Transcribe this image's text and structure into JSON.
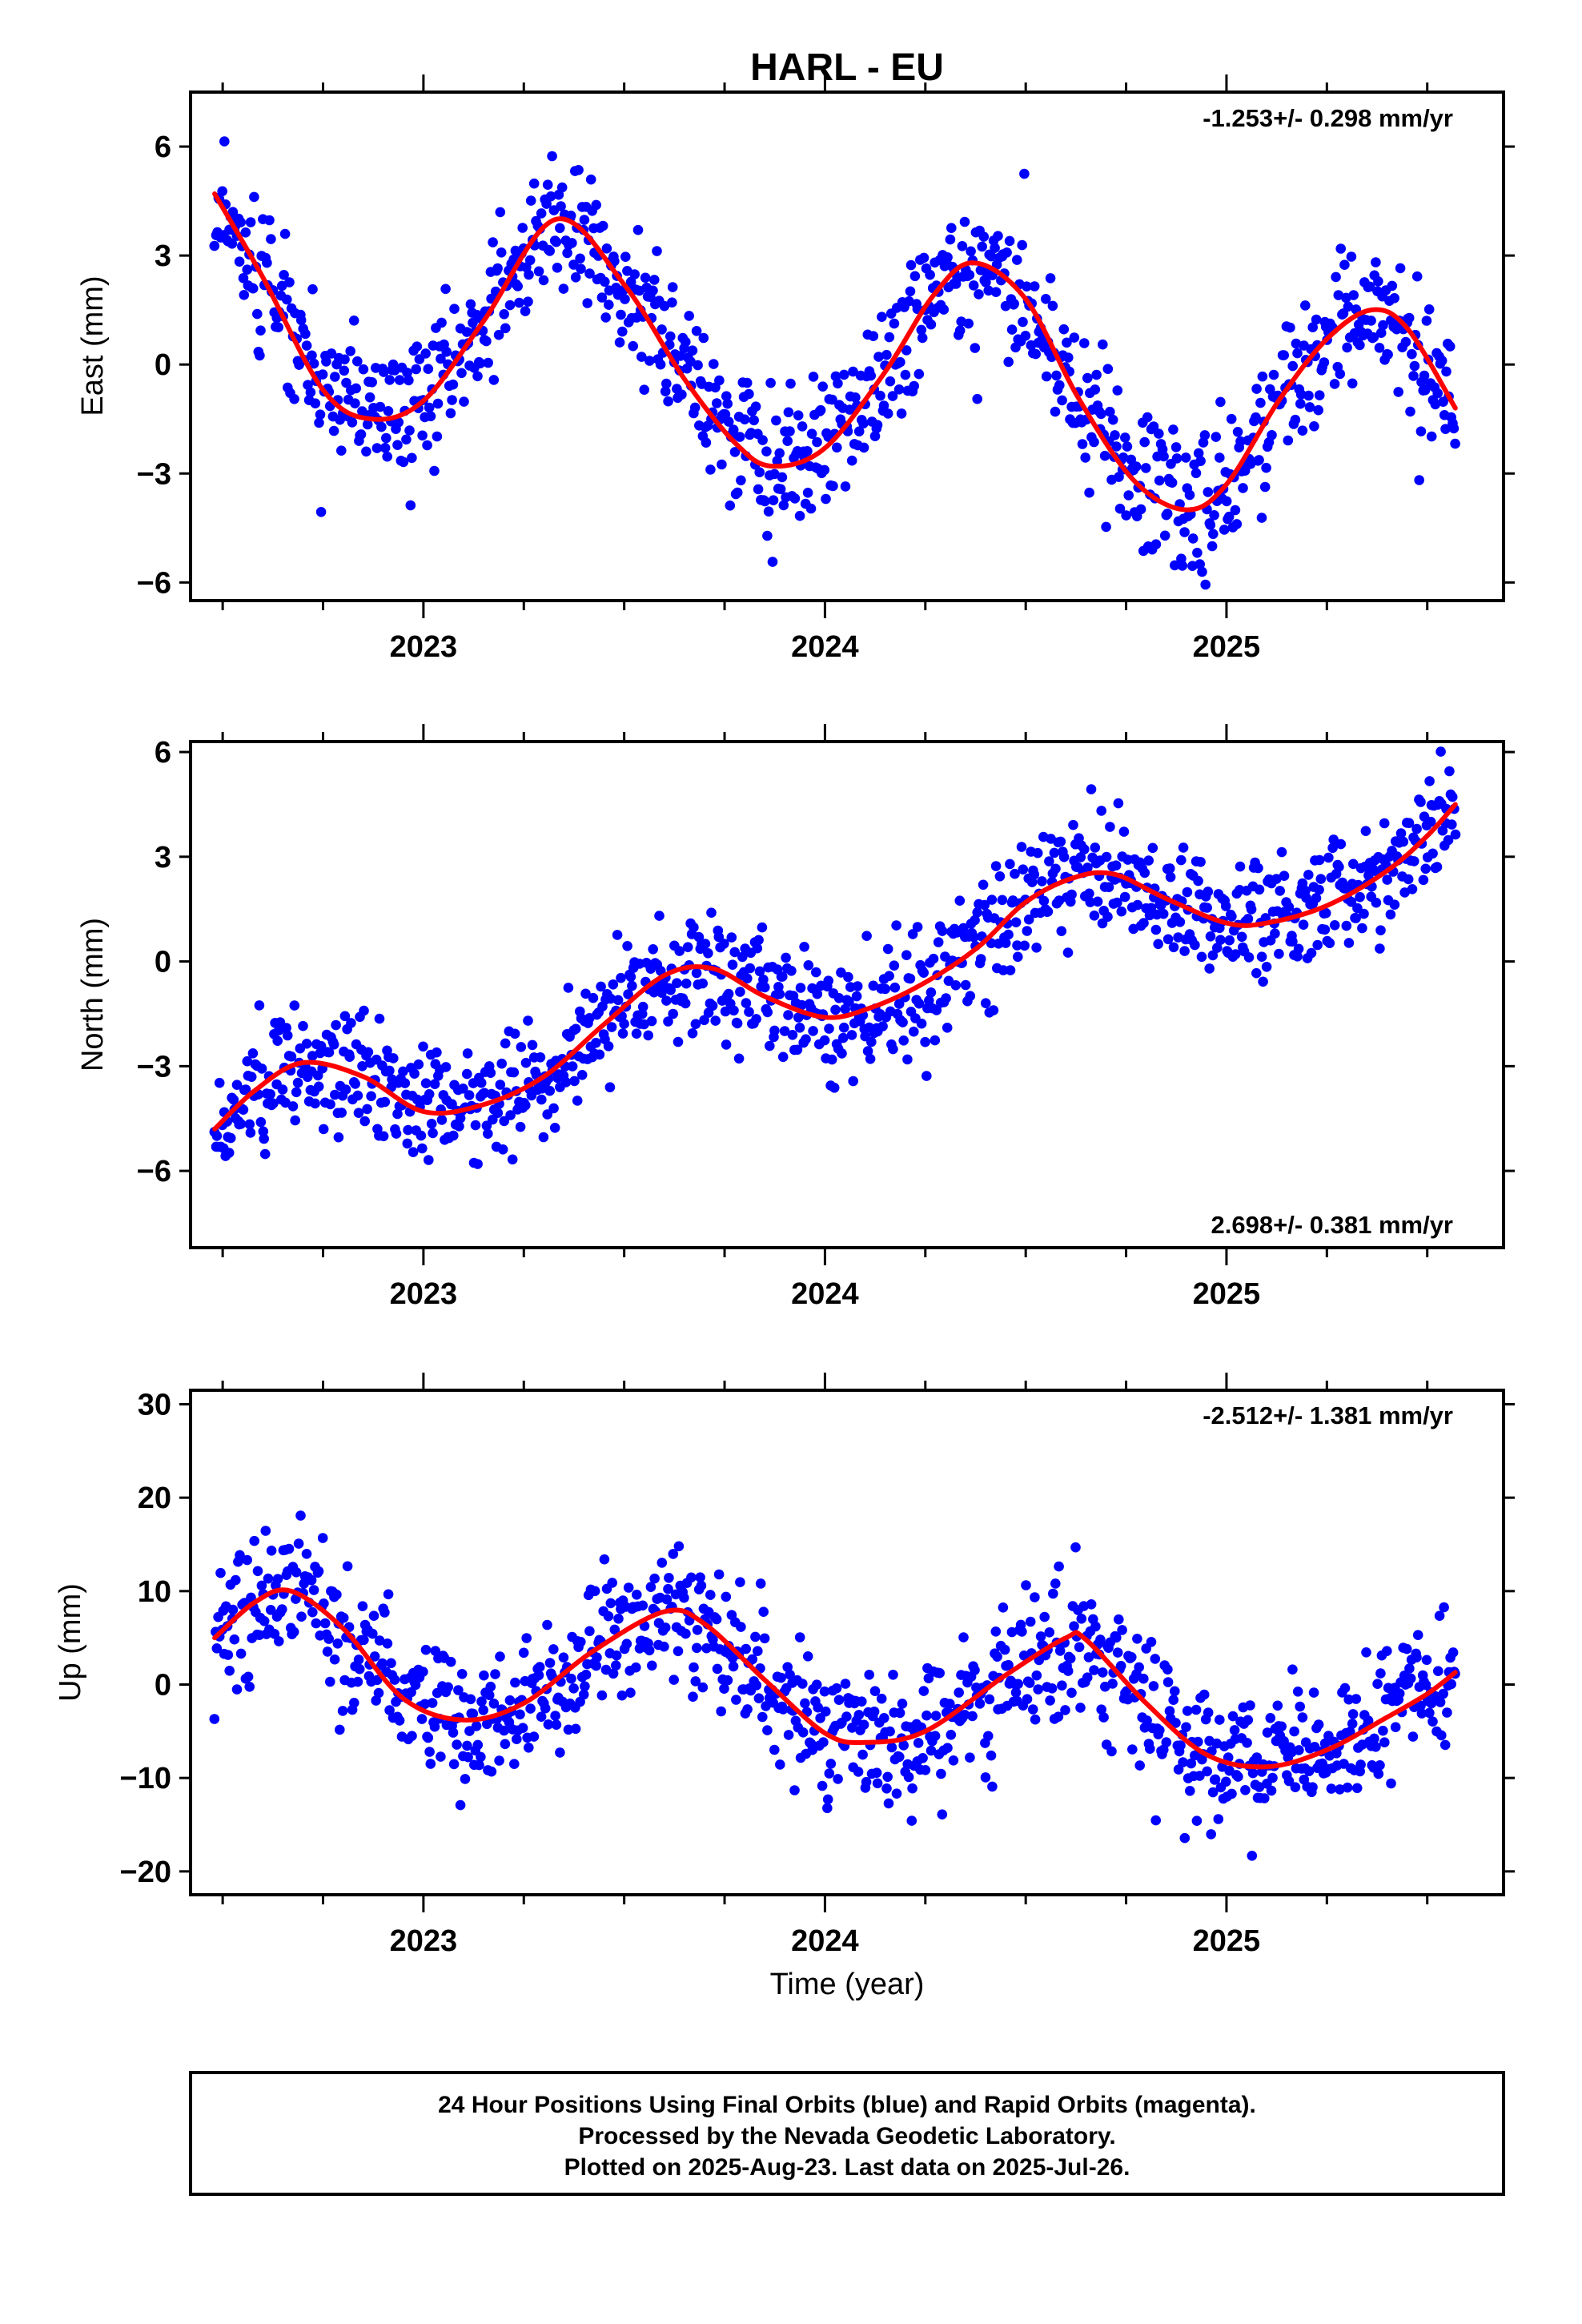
{
  "title": "HARL - EU",
  "xlabel": "Time (year)",
  "footer_lines": [
    "24 Hour Positions Using Final Orbits (blue) and Rapid Orbits (magenta).",
    "Processed by the Nevada Geodetic Laboratory.",
    "Plotted on 2025-Aug-23. Last data on 2025-Jul-26."
  ],
  "colors": {
    "points": "#0000ff",
    "fit": "#ff0000",
    "axes": "#000000"
  },
  "chart_data": [
    {
      "type": "scatter",
      "name": "east",
      "ylabel": "East (mm)",
      "rate_text": "-1.253+/- 0.298 mm/yr",
      "rate_position": "top-right",
      "xlim": [
        2022.42,
        2025.69
      ],
      "ylim": [
        -6.5,
        7.5
      ],
      "yticks": [
        -6,
        -3,
        0,
        3,
        6
      ],
      "yticklabels": [
        "−6",
        "−3",
        "0",
        "3",
        "6"
      ],
      "xticks": [
        2023,
        2024,
        2025
      ],
      "xticklabels": [
        "2023",
        "2024",
        "2025"
      ],
      "grid": false,
      "fit_curve": {
        "x": [
          2022.48,
          2022.6,
          2022.75,
          2022.87,
          2023.0,
          2023.15,
          2023.33,
          2023.5,
          2023.65,
          2023.78,
          2023.87,
          2024.0,
          2024.15,
          2024.27,
          2024.37,
          2024.5,
          2024.63,
          2024.77,
          2024.9,
          2025.0,
          2025.13,
          2025.25,
          2025.36,
          2025.45,
          2025.57
        ],
        "y": [
          4.7,
          2.4,
          -0.7,
          -1.5,
          -1.0,
          1.2,
          4.0,
          2.2,
          -0.4,
          -2.2,
          -2.8,
          -2.3,
          -0.2,
          1.9,
          2.8,
          1.8,
          -0.9,
          -3.2,
          -4.0,
          -3.3,
          -1.0,
          0.7,
          1.5,
          1.0,
          -1.2
        ]
      }
    },
    {
      "type": "scatter",
      "name": "north",
      "ylabel": "North (mm)",
      "rate_text": "2.698+/- 0.381 mm/yr",
      "rate_position": "bottom-right",
      "xlim": [
        2022.42,
        2025.69
      ],
      "ylim": [
        -8.2,
        6.3
      ],
      "yticks": [
        -6,
        -3,
        0,
        3,
        6
      ],
      "yticklabels": [
        "−6",
        "−3",
        "0",
        "3",
        "6"
      ],
      "xticks": [
        2023,
        2024,
        2025
      ],
      "xticklabels": [
        "2023",
        "2024",
        "2025"
      ],
      "grid": false,
      "fit_curve": {
        "x": [
          2022.48,
          2022.58,
          2022.7,
          2022.85,
          2023.0,
          2023.15,
          2023.3,
          2023.45,
          2023.6,
          2023.72,
          2023.85,
          2024.0,
          2024.12,
          2024.25,
          2024.38,
          2024.5,
          2024.62,
          2024.72,
          2024.85,
          2025.0,
          2025.1,
          2025.25,
          2025.4,
          2025.5,
          2025.57
        ],
        "y": [
          -4.8,
          -3.7,
          -2.9,
          -3.3,
          -4.3,
          -4.1,
          -3.3,
          -1.8,
          -0.4,
          -0.2,
          -1.0,
          -1.6,
          -1.3,
          -0.6,
          0.4,
          1.7,
          2.4,
          2.5,
          1.8,
          1.1,
          1.1,
          1.6,
          2.6,
          3.6,
          4.5
        ]
      }
    },
    {
      "type": "scatter",
      "name": "up",
      "ylabel": "Up (mm)",
      "rate_text": "-2.512+/- 1.381 mm/yr",
      "rate_position": "top-right",
      "xlim": [
        2022.42,
        2025.69
      ],
      "ylim": [
        -22.5,
        31.5
      ],
      "yticks": [
        -20,
        -10,
        0,
        10,
        20,
        30
      ],
      "yticklabels": [
        "−20",
        "−10",
        "0",
        "10",
        "20",
        "30"
      ],
      "xticks": [
        2023,
        2024,
        2025
      ],
      "xticklabels": [
        "2023",
        "2024",
        "2025"
      ],
      "grid": false,
      "fit_curve": {
        "x": [
          2022.48,
          2022.58,
          2022.67,
          2022.8,
          2022.95,
          2023.1,
          2023.25,
          2023.42,
          2023.6,
          2023.7,
          2023.85,
          2024.0,
          2024.1,
          2024.25,
          2024.45,
          2024.6,
          2024.65,
          2024.8,
          2024.95,
          2025.1,
          2025.25,
          2025.4,
          2025.5,
          2025.57
        ],
        "y": [
          5.0,
          8.8,
          10.0,
          6.0,
          -1.5,
          -3.8,
          -2.0,
          3.5,
          7.8,
          6.5,
          0.5,
          -5.2,
          -6.2,
          -5.0,
          1.0,
          5.0,
          4.8,
          -2.0,
          -7.5,
          -8.8,
          -7.0,
          -3.5,
          -1.0,
          1.3
        ]
      }
    }
  ]
}
